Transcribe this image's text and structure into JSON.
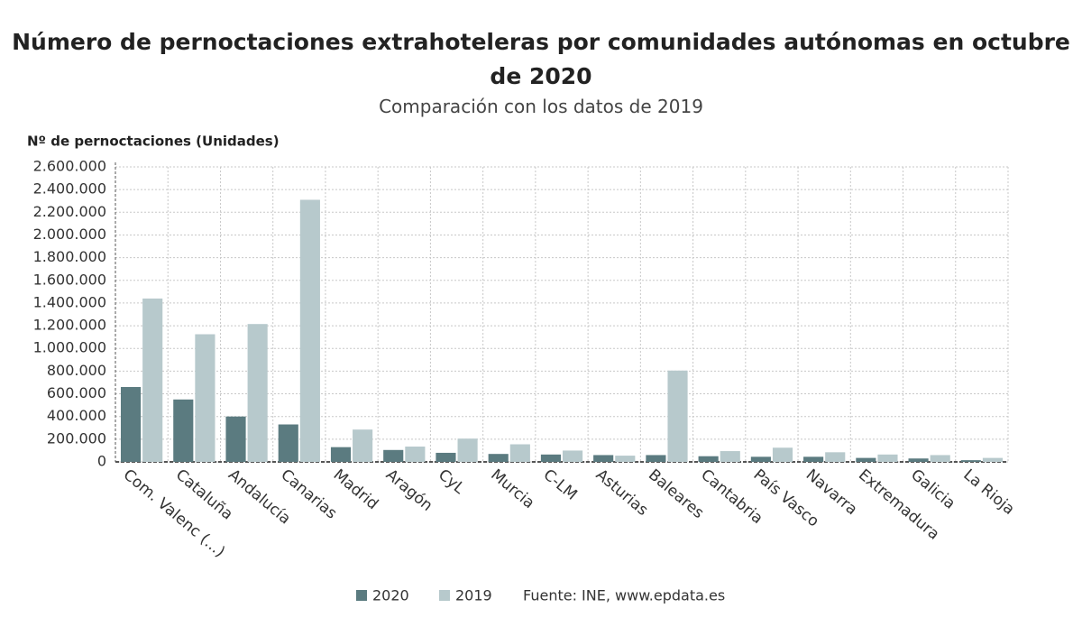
{
  "chart_data": {
    "type": "bar",
    "title": "Número de pernoctaciones extrahoteleras por comunidades autónomas en octubre de 2020",
    "subtitle": "Comparación con los datos de 2019",
    "y_label": "Nº de pernoctaciones (Unidades)",
    "source": "Fuente: INE, www.epdata.es",
    "categories": [
      "Com. Valenc (...)",
      "Cataluña",
      "Andalucía",
      "Canarias",
      "Madrid",
      "Aragón",
      "CyL",
      "Murcia",
      "C-LM",
      "Asturias",
      "Baleares",
      "Cantabria",
      "País Vasco",
      "Navarra",
      "Extremadura",
      "Galicia",
      "La Rioja"
    ],
    "series": [
      {
        "name": "2020",
        "color": "#5b7b80",
        "values": [
          660000,
          550000,
          400000,
          330000,
          130000,
          105000,
          80000,
          70000,
          65000,
          60000,
          60000,
          50000,
          45000,
          45000,
          35000,
          30000,
          15000
        ]
      },
      {
        "name": "2019",
        "color": "#b7c9cc",
        "values": [
          1440000,
          1125000,
          1215000,
          2310000,
          285000,
          135000,
          205000,
          155000,
          100000,
          55000,
          805000,
          95000,
          125000,
          85000,
          65000,
          60000,
          35000
        ]
      }
    ],
    "ylim": [
      0,
      2600000
    ],
    "yticks": [
      0,
      {
        "value": 200000,
        "label": "200.000"
      },
      {
        "value": 400000,
        "label": "400.000"
      },
      {
        "value": 600000,
        "label": "600.000"
      },
      {
        "value": 800000,
        "label": "800.000"
      },
      {
        "value": 1000000,
        "label": "1.000.000"
      },
      {
        "value": 1200000,
        "label": "1.200.000"
      },
      {
        "value": 1400000,
        "label": "1.400.000"
      },
      {
        "value": 1600000,
        "label": "1.600.000"
      },
      {
        "value": 1800000,
        "label": "1.800.000"
      },
      {
        "value": 2000000,
        "label": "2.000.000"
      },
      {
        "value": 2200000,
        "label": "2.200.000"
      },
      {
        "value": 2400000,
        "label": "2.400.000"
      },
      {
        "value": 2600000,
        "label": "2.600.000"
      }
    ],
    "grid": true
  }
}
